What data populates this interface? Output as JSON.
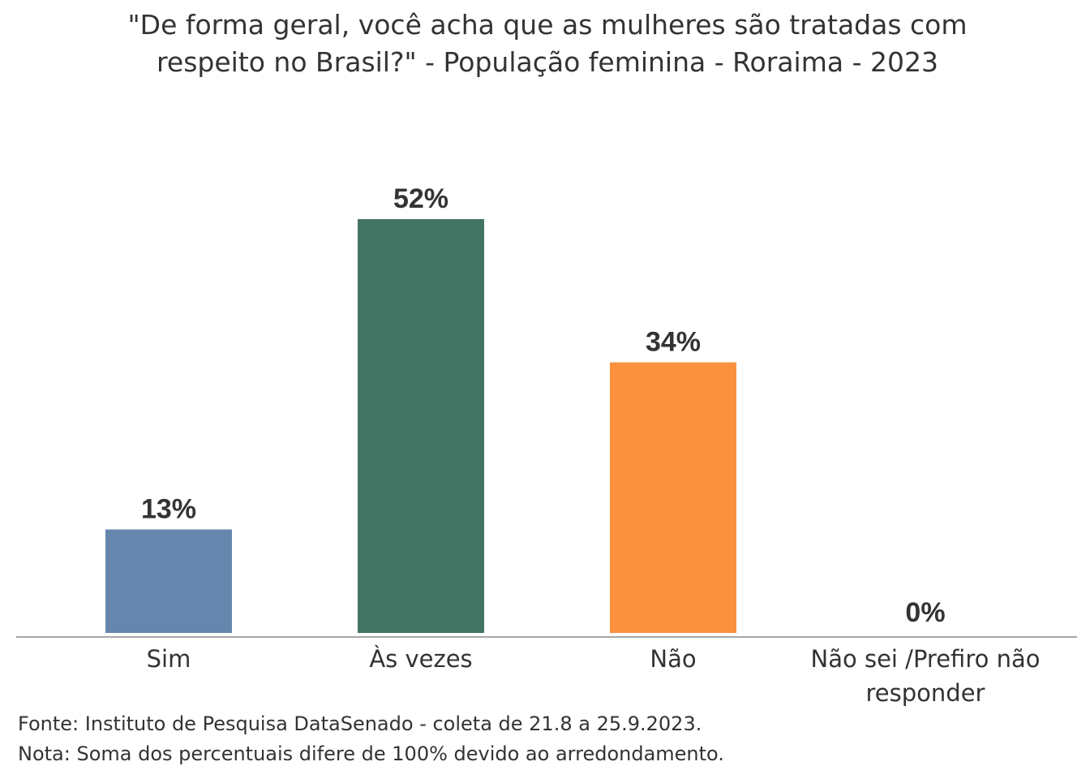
{
  "title_lines": [
    "\"De forma geral, você acha que as mulheres são tratadas com",
    "respeito no Brasil?\" - População feminina - Roraima - 2023"
  ],
  "footnotes": {
    "source": "Fonte: Instituto de Pesquisa DataSenado - coleta de 21.8 a 25.9.2023.",
    "note": "Nota: Soma dos percentuais difere de 100% devido ao arredondamento."
  },
  "chart_data": {
    "type": "bar",
    "title": "\"De forma geral, você acha que as mulheres são tratadas com respeito no Brasil?\" - População feminina - Roraima - 2023",
    "categories": [
      "Sim",
      "Às vezes",
      "Não",
      "Não sei /Prefiro não responder"
    ],
    "category_label_lines": [
      [
        "Sim"
      ],
      [
        "Às vezes"
      ],
      [
        "Não"
      ],
      [
        "Não sei /Prefiro não",
        "responder"
      ]
    ],
    "values": [
      13,
      52,
      34,
      0
    ],
    "data_labels": [
      "13%",
      "52%",
      "34%",
      "0%"
    ],
    "colors": [
      "#6587ae",
      "#447463",
      "#fb913e",
      "#cccccc"
    ],
    "xlabel": "",
    "ylabel": "",
    "ylim": [
      0,
      52
    ],
    "grid": false,
    "legend": "none"
  }
}
